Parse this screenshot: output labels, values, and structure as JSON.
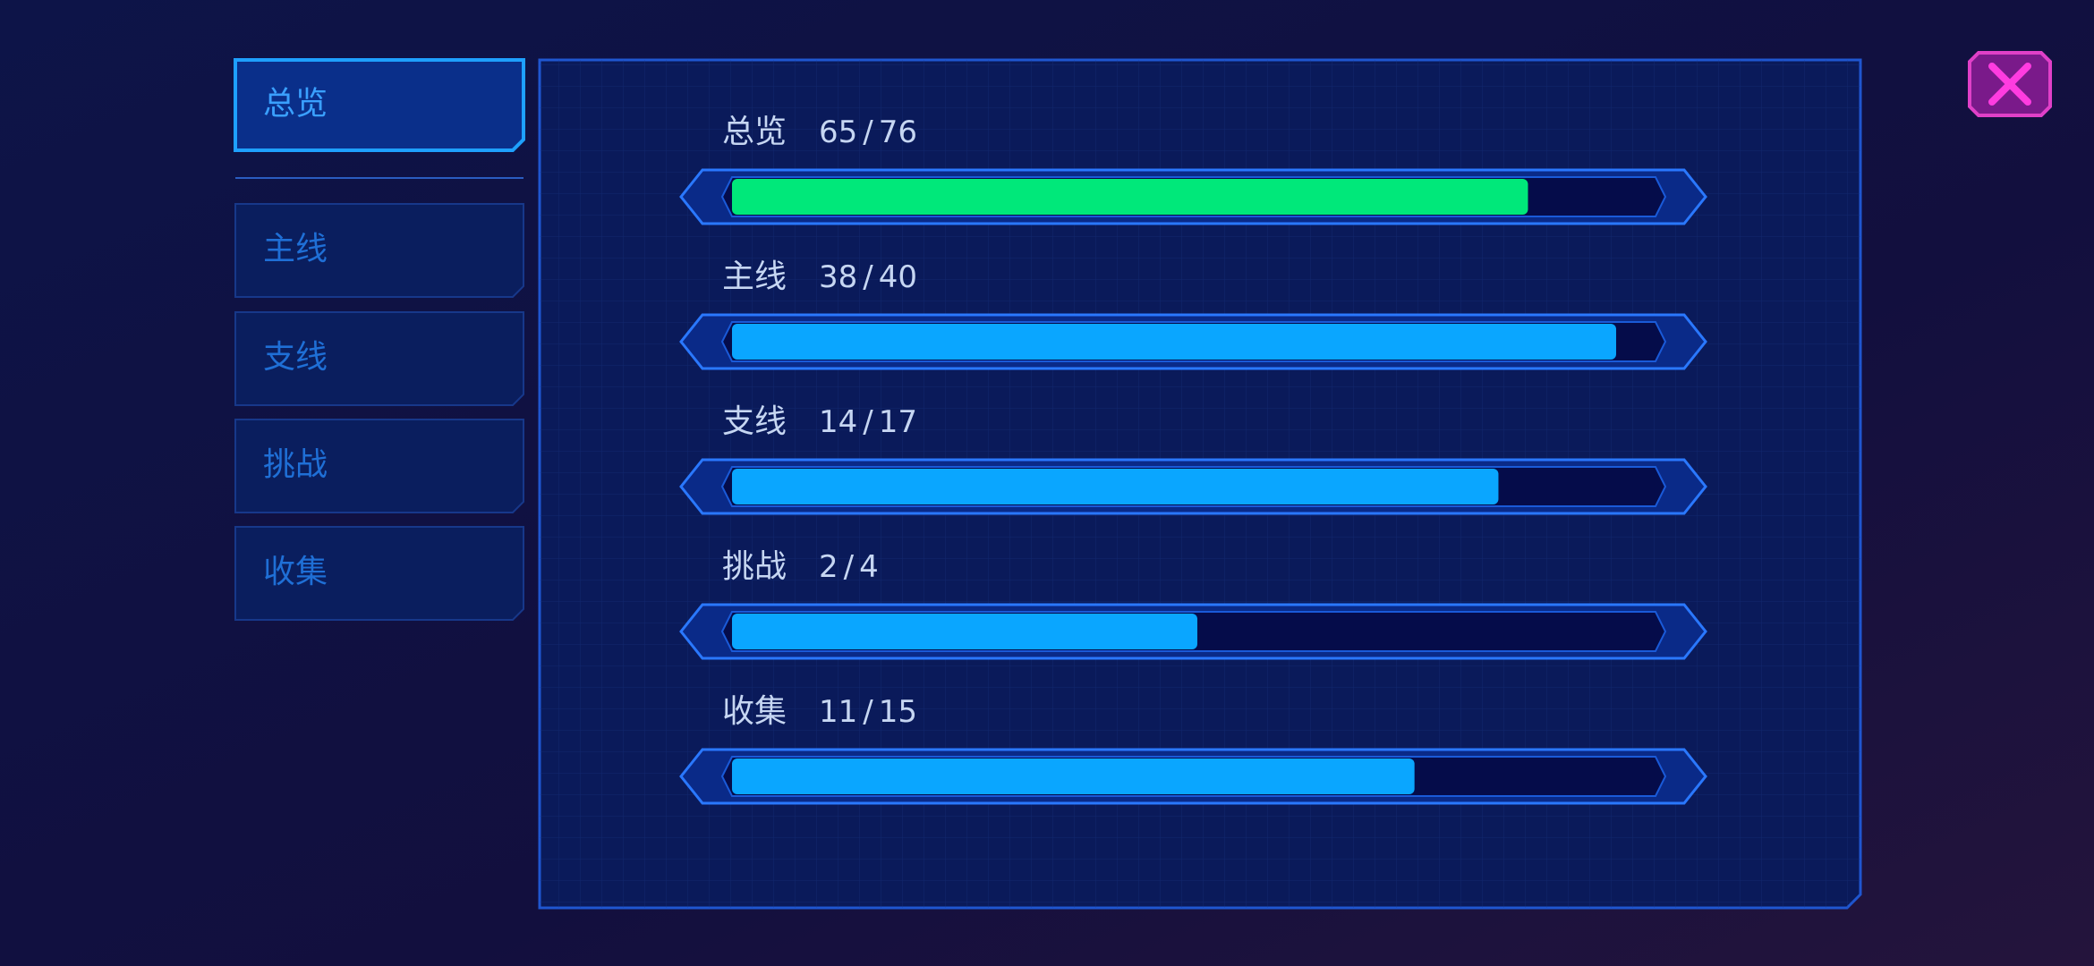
{
  "tabs": [
    "总览",
    "主线",
    "支线",
    "挑战",
    "收集"
  ],
  "separator": "/",
  "progress": {
    "rows": [
      {
        "label": "总览",
        "done": 65,
        "total": 76,
        "color": "#00e87a"
      },
      {
        "label": "主线",
        "done": 38,
        "total": 40,
        "color": "#0aa6ff"
      },
      {
        "label": "支线",
        "done": 14,
        "total": 17,
        "color": "#0aa6ff"
      },
      {
        "label": "挑战",
        "done": 2,
        "total": 4,
        "color": "#0aa6ff"
      },
      {
        "label": "收集",
        "done": 11,
        "total": 15,
        "color": "#0aa6ff"
      }
    ]
  }
}
